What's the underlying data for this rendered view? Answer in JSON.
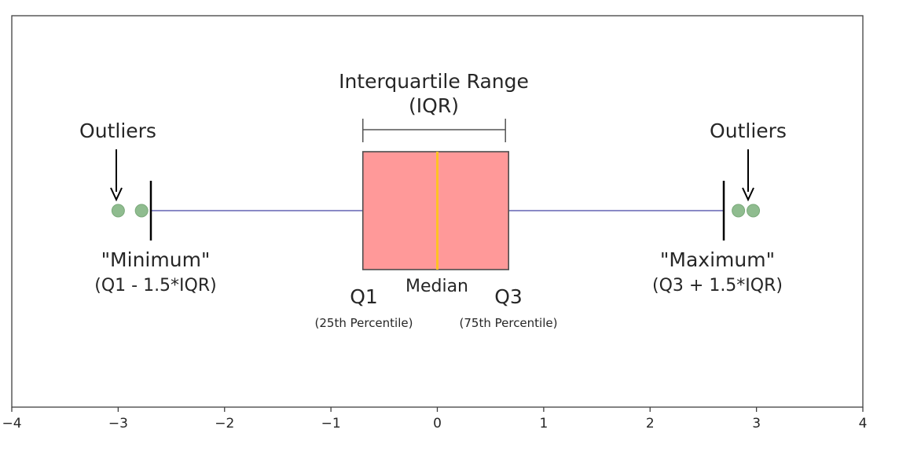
{
  "chart_data": {
    "type": "box",
    "title": "",
    "xlabel": "",
    "ylabel": "",
    "xlim": [
      -4,
      4
    ],
    "x_ticks": [
      -4,
      -3,
      -2,
      -1,
      0,
      1,
      2,
      3,
      4
    ],
    "x_tick_labels": [
      "−4",
      "−3",
      "−2",
      "−1",
      "0",
      "1",
      "2",
      "3",
      "4"
    ],
    "grid": false,
    "orientation": "horizontal",
    "box": {
      "q1": -0.7,
      "median": 0.0,
      "q3": 0.67,
      "whisker_low": -2.7,
      "whisker_high": 2.7
    },
    "outliers": [
      -3.0,
      -2.78,
      2.83,
      2.97
    ],
    "colors": {
      "box_fill": "#ff9999",
      "box_edge": "#4d4d4d",
      "median": "#ffc125",
      "whisker": "#8a8ac6",
      "outlier": "#8fbc8f",
      "axis": "#404040"
    },
    "annotations": {
      "iqr_title": "Interquartile Range",
      "iqr_abbr": "(IQR)",
      "outliers_left": "Outliers",
      "outliers_right": "Outliers",
      "minimum": "\"Minimum\"",
      "minimum_formula": "(Q1 - 1.5*IQR)",
      "maximum": "\"Maximum\"",
      "maximum_formula": "(Q3 + 1.5*IQR)",
      "q1": "Q1",
      "q1_sub": "(25th Percentile)",
      "median": "Median",
      "q3": "Q3",
      "q3_sub": "(75th Percentile)"
    }
  }
}
